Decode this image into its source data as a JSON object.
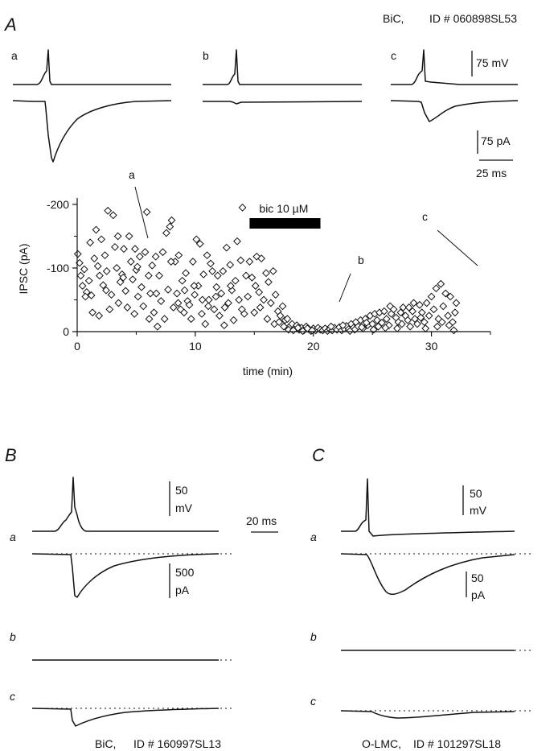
{
  "panel_A": {
    "letter": "A",
    "drug_label": "BiC,",
    "id_label": "ID # 060898SL53",
    "trace_labels": [
      "a",
      "b",
      "c"
    ],
    "scale_voltage": "75 mV",
    "scale_current": "75 pA",
    "scale_time": "25 ms"
  },
  "panel_B": {
    "letter": "B",
    "scale_voltage_value": "50",
    "scale_voltage_unit": "mV",
    "scale_current_value": "500",
    "scale_current_unit": "pA",
    "trace_labels": [
      "a",
      "b",
      "c"
    ],
    "drug_label": "BiC,",
    "id_label": "ID # 160997SL13"
  },
  "panel_C": {
    "letter": "C",
    "scale_voltage_value": "50",
    "scale_voltage_unit": "mV",
    "scale_current_value": "50",
    "scale_current_unit": "pA",
    "trace_labels": [
      "a",
      "b",
      "c"
    ],
    "drug_label": "O-LMC,",
    "id_label": "ID # 101297SL18"
  },
  "scale_time_BC": "20 ms",
  "chart_data": {
    "type": "scatter",
    "xlabel": "time (min)",
    "ylabel": "IPSC (pA)",
    "xlim": [
      0,
      35
    ],
    "ylim": [
      0,
      -210
    ],
    "xticks": [
      "0",
      "10",
      "20",
      "30"
    ],
    "yticks": [
      "0",
      "-100",
      "-200"
    ],
    "marker": "open-diamond",
    "drug_bar": {
      "label": "bic 10 µM",
      "start": 14.6,
      "end": 20.6
    },
    "annotations": [
      {
        "text": "a",
        "x": 5.5
      },
      {
        "text": "b",
        "x": 20.5
      },
      {
        "text": "c",
        "x": 30.5
      }
    ],
    "points_control": [
      [
        0.05,
        -122
      ],
      [
        0.2,
        -108
      ],
      [
        0.3,
        -88
      ],
      [
        0.45,
        -72
      ],
      [
        0.6,
        -98
      ],
      [
        0.8,
        -62
      ],
      [
        1.0,
        -80
      ],
      [
        1.2,
        -57
      ],
      [
        1.3,
        -30
      ],
      [
        1.45,
        -115
      ],
      [
        1.6,
        -160
      ],
      [
        1.75,
        -103
      ],
      [
        1.9,
        -88
      ],
      [
        2.05,
        -145
      ],
      [
        2.2,
        -73
      ],
      [
        2.35,
        -120
      ],
      [
        2.5,
        -95
      ],
      [
        2.6,
        -190
      ],
      [
        2.75,
        -35
      ],
      [
        2.9,
        -58
      ],
      [
        3.05,
        -183
      ],
      [
        3.2,
        -133
      ],
      [
        3.35,
        -100
      ],
      [
        3.5,
        -45
      ],
      [
        3.65,
        -78
      ],
      [
        3.8,
        -90
      ],
      [
        3.95,
        -130
      ],
      [
        4.1,
        -64
      ],
      [
        4.25,
        -38
      ],
      [
        4.4,
        -150
      ],
      [
        4.55,
        -110
      ],
      [
        4.7,
        -82
      ],
      [
        4.85,
        -28
      ],
      [
        5.0,
        -97
      ],
      [
        5.15,
        -55
      ],
      [
        5.3,
        -118
      ],
      [
        5.45,
        -70
      ],
      [
        5.6,
        -40
      ],
      [
        5.75,
        -125
      ],
      [
        5.9,
        -188
      ],
      [
        6.05,
        -88
      ],
      [
        6.2,
        -60
      ],
      [
        6.35,
        -104
      ],
      [
        6.5,
        -30
      ],
      [
        6.65,
        -118
      ],
      [
        6.8,
        -8
      ],
      [
        6.95,
        -88
      ],
      [
        7.1,
        -48
      ],
      [
        7.25,
        -125
      ],
      [
        7.4,
        -20
      ],
      [
        7.55,
        -155
      ],
      [
        7.7,
        -66
      ],
      [
        7.85,
        -165
      ],
      [
        8.0,
        -175
      ],
      [
        8.15,
        -38
      ],
      [
        8.3,
        -110
      ],
      [
        8.45,
        -60
      ],
      [
        8.6,
        -120
      ],
      [
        8.75,
        -35
      ],
      [
        8.9,
        -80
      ],
      [
        9.05,
        -30
      ],
      [
        9.2,
        -92
      ],
      [
        9.35,
        -48
      ],
      [
        9.5,
        -42
      ],
      [
        9.65,
        -20
      ],
      [
        9.8,
        -110
      ],
      [
        9.95,
        -58
      ],
      [
        10.1,
        -145
      ],
      [
        10.25,
        -72
      ],
      [
        10.4,
        -138
      ],
      [
        10.55,
        -28
      ],
      [
        10.7,
        -90
      ],
      [
        10.85,
        -12
      ],
      [
        11.0,
        -120
      ],
      [
        11.15,
        -50
      ],
      [
        11.3,
        -107
      ],
      [
        11.45,
        -95
      ],
      [
        11.6,
        -35
      ],
      [
        11.75,
        -55
      ],
      [
        11.9,
        -88
      ],
      [
        12.05,
        -25
      ],
      [
        12.2,
        -60
      ],
      [
        12.35,
        -95
      ],
      [
        12.5,
        -38
      ],
      [
        12.65,
        -132
      ],
      [
        12.8,
        -45
      ],
      [
        12.95,
        -105
      ],
      [
        13.1,
        -65
      ],
      [
        13.25,
        -18
      ],
      [
        13.4,
        -80
      ],
      [
        13.55,
        -142
      ],
      [
        13.7,
        -50
      ],
      [
        13.85,
        -112
      ],
      [
        14.0,
        -195
      ],
      [
        14.15,
        -28
      ],
      [
        14.3,
        -88
      ],
      [
        14.45,
        -55
      ],
      [
        14.6,
        -110
      ],
      [
        1.1,
        -140
      ],
      [
        2.45,
        -65
      ],
      [
        3.9,
        -85
      ],
      [
        5.1,
        -102
      ],
      [
        6.7,
        -60
      ],
      [
        7.95,
        -110
      ],
      [
        9.1,
        -65
      ],
      [
        10.6,
        -50
      ],
      [
        11.8,
        -70
      ],
      [
        13.0,
        -72
      ],
      [
        0.7,
        -55
      ],
      [
        1.85,
        -25
      ],
      [
        3.45,
        -150
      ],
      [
        4.9,
        -130
      ],
      [
        6.1,
        -20
      ],
      [
        8.55,
        -45
      ],
      [
        9.9,
        -72
      ],
      [
        11.1,
        -40
      ],
      [
        12.45,
        -10
      ],
      [
        13.95,
        -35
      ]
    ],
    "points_drug": [
      [
        14.8,
        -85
      ],
      [
        15.0,
        -30
      ],
      [
        15.2,
        -118
      ],
      [
        15.4,
        -62
      ],
      [
        15.6,
        -115
      ],
      [
        15.8,
        -50
      ],
      [
        16.0,
        -92
      ],
      [
        16.2,
        -78
      ],
      [
        16.4,
        -45
      ],
      [
        16.6,
        -95
      ],
      [
        16.8,
        -58
      ],
      [
        17.0,
        -32
      ],
      [
        17.2,
        -25
      ],
      [
        17.4,
        -40
      ],
      [
        17.6,
        -18
      ],
      [
        17.8,
        -20
      ],
      [
        18.0,
        -8
      ],
      [
        18.2,
        -12
      ],
      [
        18.4,
        -5
      ],
      [
        18.6,
        -10
      ],
      [
        18.8,
        -3
      ],
      [
        19.0,
        -6
      ],
      [
        19.2,
        -2
      ],
      [
        19.4,
        -8
      ],
      [
        19.6,
        -4
      ],
      [
        19.8,
        -1
      ],
      [
        20.0,
        -5
      ],
      [
        20.2,
        -2
      ],
      [
        20.4,
        -6
      ],
      [
        20.6,
        -3
      ],
      [
        15.1,
        -72
      ],
      [
        15.5,
        -38
      ],
      [
        16.1,
        -20
      ],
      [
        16.7,
        -12
      ],
      [
        17.1,
        -15
      ],
      [
        17.5,
        -8
      ],
      [
        17.9,
        -3
      ],
      [
        18.3,
        -2
      ],
      [
        18.7,
        -6
      ],
      [
        19.1,
        -1
      ],
      [
        19.5,
        -5
      ],
      [
        19.9,
        -2
      ]
    ],
    "points_wash": [
      [
        20.8,
        -2
      ],
      [
        21.0,
        -5
      ],
      [
        21.2,
        -1
      ],
      [
        21.4,
        -4
      ],
      [
        21.6,
        -2
      ],
      [
        21.8,
        -6
      ],
      [
        22.0,
        -3
      ],
      [
        22.2,
        -7
      ],
      [
        22.4,
        -2
      ],
      [
        22.6,
        -5
      ],
      [
        22.8,
        -9
      ],
      [
        23.0,
        -4
      ],
      [
        23.2,
        -12
      ],
      [
        23.4,
        -6
      ],
      [
        23.6,
        -15
      ],
      [
        23.8,
        -8
      ],
      [
        24.0,
        -18
      ],
      [
        24.2,
        -5
      ],
      [
        24.4,
        -20
      ],
      [
        24.6,
        -10
      ],
      [
        24.8,
        -25
      ],
      [
        25.0,
        -12
      ],
      [
        25.2,
        -28
      ],
      [
        25.4,
        -18
      ],
      [
        25.6,
        -30
      ],
      [
        25.8,
        -14
      ],
      [
        26.0,
        -32
      ],
      [
        26.2,
        -20
      ],
      [
        26.4,
        -10
      ],
      [
        26.6,
        -28
      ],
      [
        26.8,
        -35
      ],
      [
        27.0,
        -22
      ],
      [
        27.2,
        -15
      ],
      [
        27.4,
        -30
      ],
      [
        27.6,
        -38
      ],
      [
        27.8,
        -25
      ],
      [
        28.0,
        -18
      ],
      [
        28.2,
        -8
      ],
      [
        28.4,
        -32
      ],
      [
        28.6,
        -20
      ],
      [
        28.8,
        -12
      ],
      [
        29.0,
        -42
      ],
      [
        29.2,
        -30
      ],
      [
        29.4,
        -15
      ],
      [
        29.6,
        -45
      ],
      [
        29.8,
        -25
      ],
      [
        30.0,
        -55
      ],
      [
        30.2,
        -35
      ],
      [
        30.4,
        -68
      ],
      [
        30.6,
        -20
      ],
      [
        30.8,
        -75
      ],
      [
        31.0,
        -40
      ],
      [
        31.2,
        -60
      ],
      [
        31.4,
        -25
      ],
      [
        31.6,
        -55
      ],
      [
        31.8,
        -15
      ],
      [
        32.0,
        -30
      ],
      [
        32.1,
        -45
      ],
      [
        21.5,
        -8
      ],
      [
        22.5,
        -10
      ],
      [
        23.5,
        -3
      ],
      [
        24.5,
        -14
      ],
      [
        25.5,
        -8
      ],
      [
        26.5,
        -40
      ],
      [
        27.5,
        -12
      ],
      [
        28.5,
        -45
      ],
      [
        29.5,
        -5
      ],
      [
        30.5,
        -8
      ],
      [
        31.5,
        -10
      ],
      [
        31.9,
        -2
      ],
      [
        30.9,
        -15
      ],
      [
        29.1,
        -22
      ],
      [
        28.1,
        -38
      ],
      [
        27.1,
        -5
      ],
      [
        26.1,
        -6
      ],
      [
        25.1,
        -3
      ],
      [
        24.1,
        -7
      ],
      [
        23.1,
        -1
      ]
    ]
  }
}
